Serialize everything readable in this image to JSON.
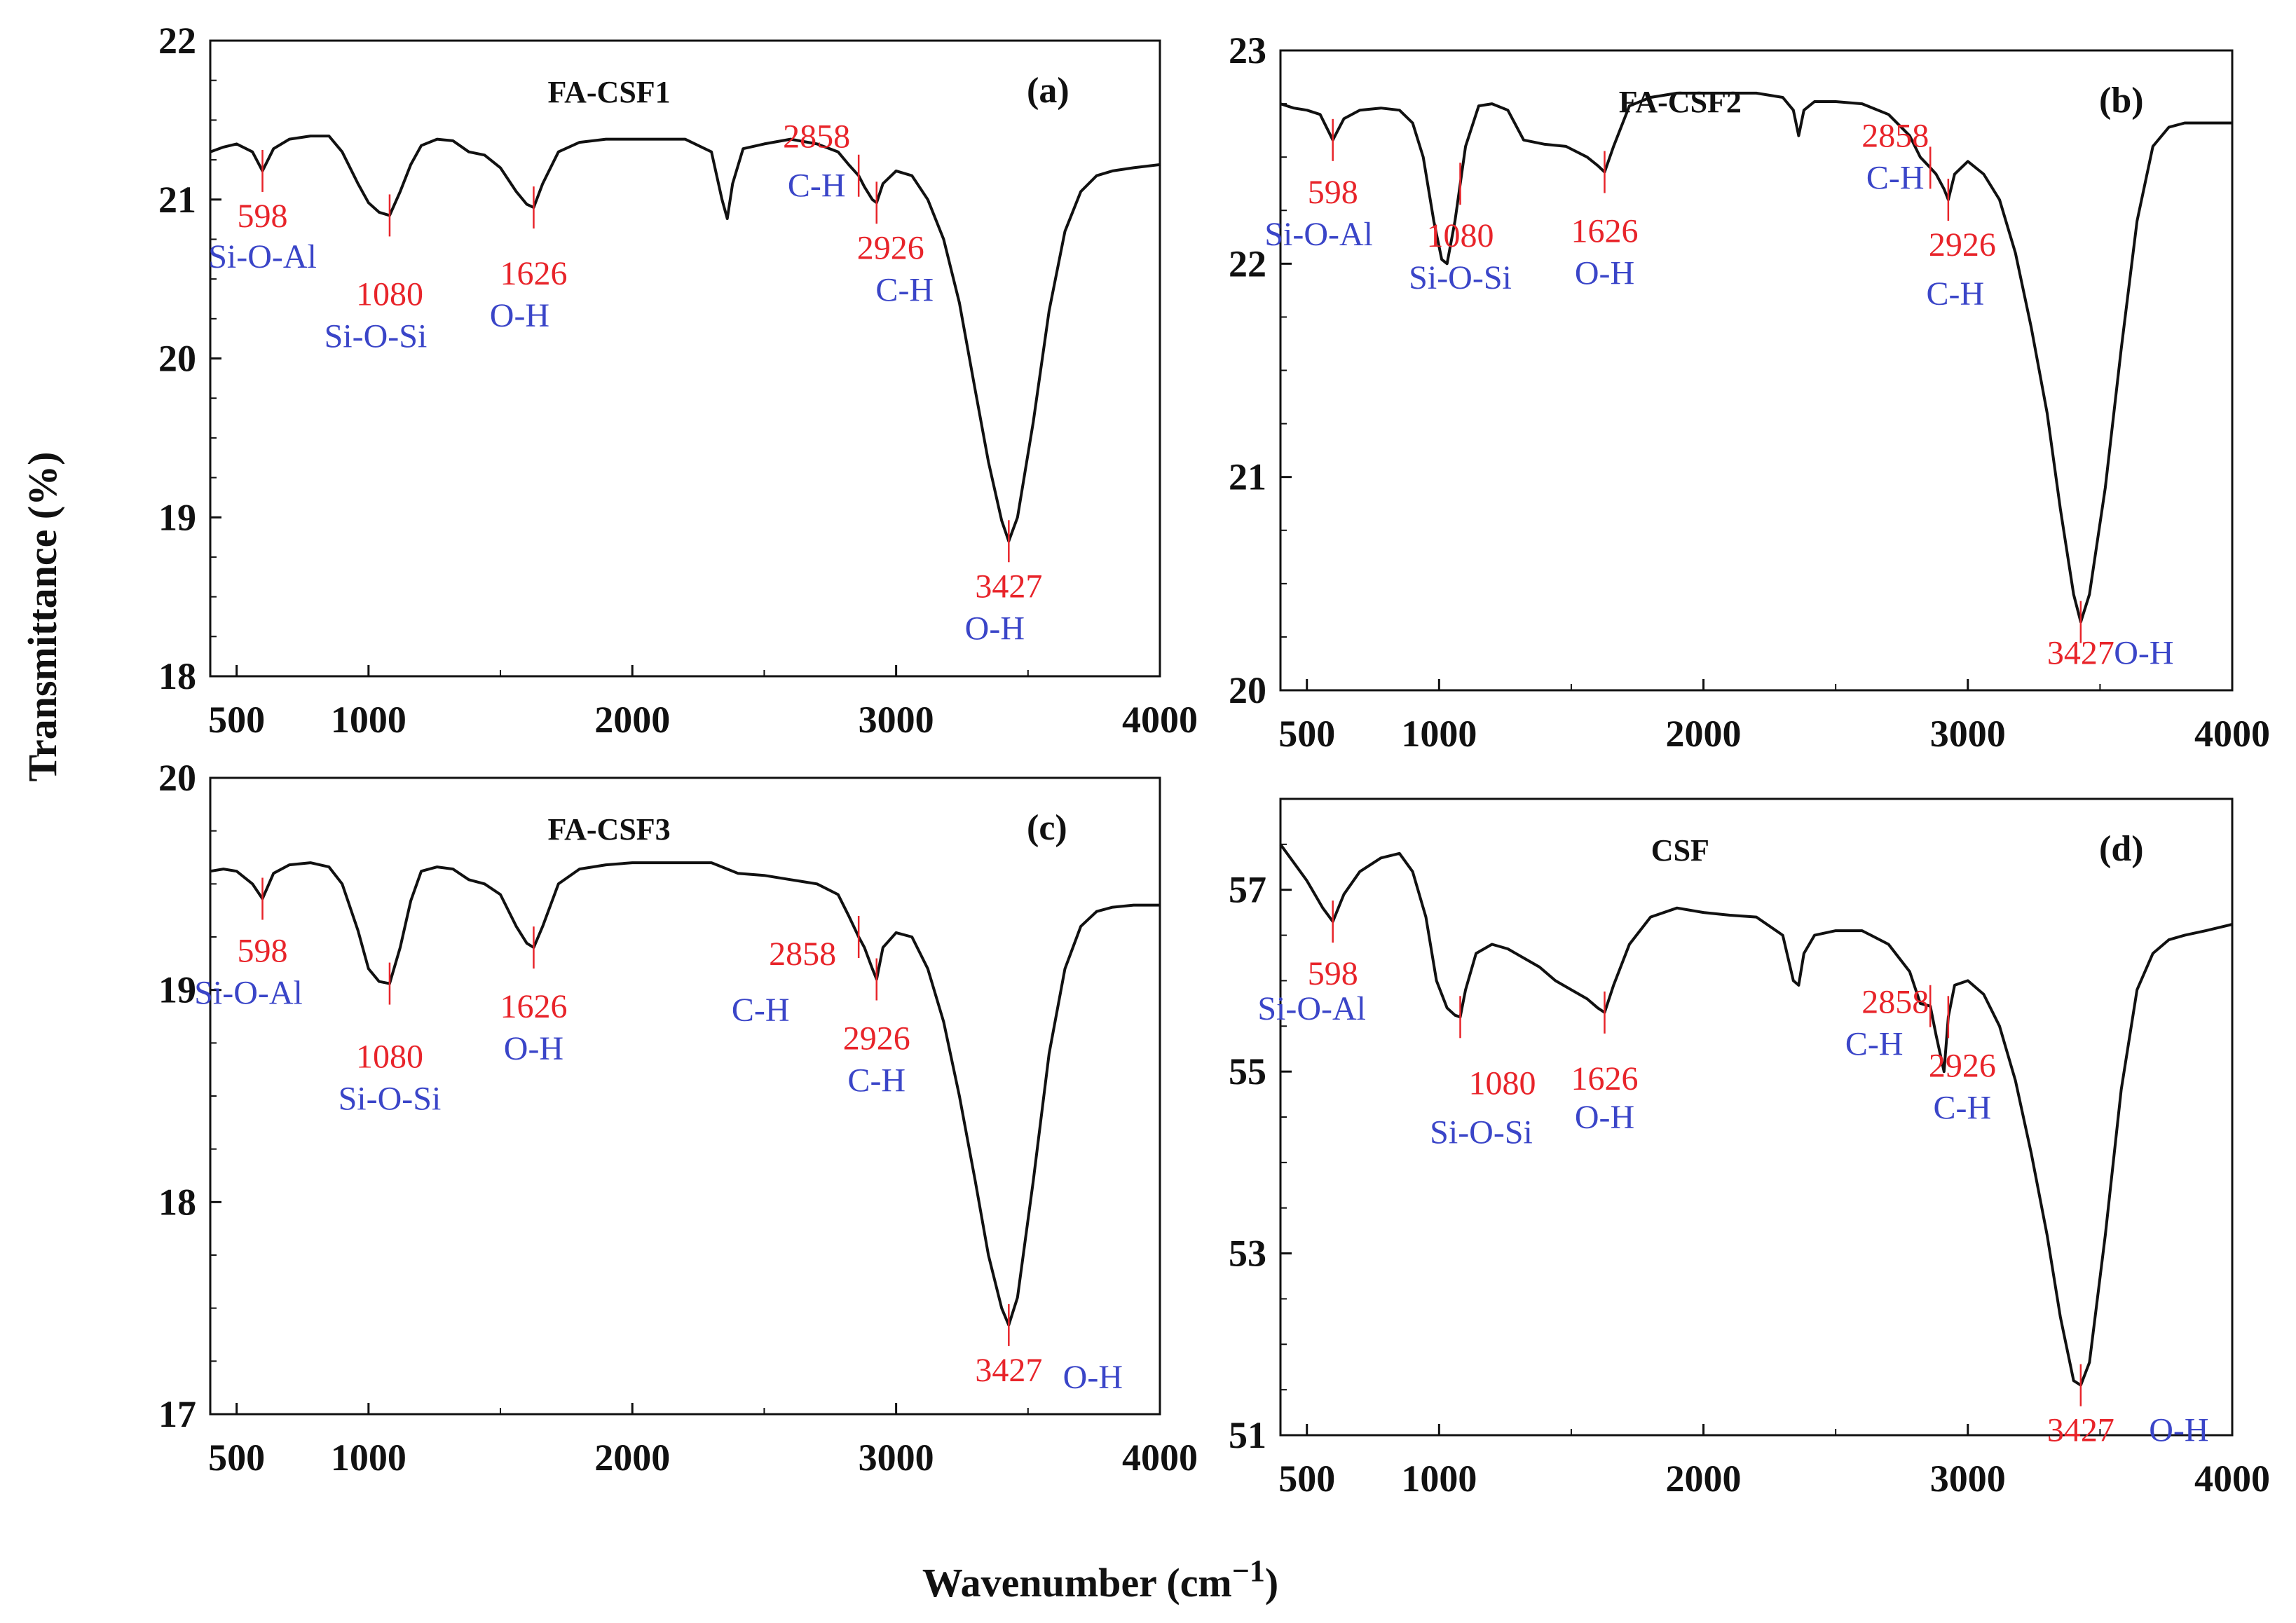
{
  "figure": {
    "ylabel": "Transmittance (%)",
    "xlabel_main": "Wavenumber (cm",
    "xlabel_sup": "−1",
    "xlabel_close": ")"
  },
  "colors": {
    "curve": "#111111",
    "peak_number": "#e8242a",
    "peak_group": "#3a45c8",
    "axis": "#111111"
  },
  "chart_data": [
    {
      "type": "line",
      "letter": "(a)",
      "title": "FA-CSF1",
      "xlim": [
        400,
        4000
      ],
      "ylim": [
        18,
        22
      ],
      "xticks": [
        500,
        1000,
        2000,
        3000,
        4000
      ],
      "yticks": [
        18,
        19,
        20,
        21,
        22
      ],
      "series": [
        {
          "name": "FA-CSF1",
          "x": [
            400,
            450,
            500,
            560,
            598,
            640,
            700,
            780,
            850,
            900,
            960,
            1000,
            1040,
            1080,
            1120,
            1160,
            1200,
            1260,
            1320,
            1380,
            1440,
            1500,
            1560,
            1600,
            1626,
            1660,
            1720,
            1800,
            1900,
            2000,
            2100,
            2200,
            2300,
            2340,
            2360,
            2380,
            2420,
            2500,
            2600,
            2700,
            2780,
            2820,
            2858,
            2880,
            2910,
            2926,
            2950,
            3000,
            3060,
            3120,
            3180,
            3240,
            3300,
            3350,
            3400,
            3427,
            3460,
            3520,
            3580,
            3640,
            3700,
            3760,
            3820,
            3900,
            4000
          ],
          "y": [
            21.3,
            21.33,
            21.35,
            21.3,
            21.18,
            21.32,
            21.38,
            21.4,
            21.4,
            21.3,
            21.1,
            20.98,
            20.92,
            20.9,
            21.05,
            21.22,
            21.34,
            21.38,
            21.37,
            21.3,
            21.28,
            21.2,
            21.05,
            20.97,
            20.95,
            21.1,
            21.3,
            21.36,
            21.38,
            21.38,
            21.38,
            21.38,
            21.3,
            21.0,
            20.88,
            21.1,
            21.32,
            21.35,
            21.38,
            21.35,
            21.3,
            21.22,
            21.15,
            21.08,
            21.0,
            20.98,
            21.1,
            21.18,
            21.15,
            21.0,
            20.75,
            20.35,
            19.8,
            19.35,
            18.98,
            18.85,
            19.0,
            19.6,
            20.3,
            20.8,
            21.05,
            21.15,
            21.18,
            21.2,
            21.22
          ]
        }
      ],
      "annotations": [
        {
          "wavenumber": 598,
          "number": "598",
          "group": "Si-O-Al"
        },
        {
          "wavenumber": 1080,
          "number": "1080",
          "group": "Si-O-Si"
        },
        {
          "wavenumber": 1626,
          "number": "1626",
          "group": "O-H"
        },
        {
          "wavenumber": 2858,
          "number": "2858",
          "group": "C-H"
        },
        {
          "wavenumber": 2926,
          "number": "2926",
          "group": "C-H"
        },
        {
          "wavenumber": 3427,
          "number": "3427",
          "group": "O-H"
        }
      ]
    },
    {
      "type": "line",
      "letter": "(b)",
      "title": "FA-CSF2",
      "xlim": [
        400,
        4000
      ],
      "ylim": [
        20,
        23
      ],
      "xticks": [
        500,
        1000,
        2000,
        3000,
        4000
      ],
      "yticks": [
        20,
        21,
        22,
        23
      ],
      "series": [
        {
          "name": "FA-CSF2",
          "x": [
            400,
            450,
            500,
            550,
            598,
            640,
            700,
            780,
            850,
            900,
            940,
            980,
            1010,
            1030,
            1060,
            1100,
            1150,
            1200,
            1260,
            1320,
            1400,
            1480,
            1560,
            1600,
            1626,
            1660,
            1720,
            1800,
            1900,
            2000,
            2100,
            2200,
            2300,
            2340,
            2360,
            2380,
            2420,
            2500,
            2600,
            2700,
            2780,
            2820,
            2858,
            2880,
            2910,
            2926,
            2950,
            3000,
            3060,
            3120,
            3180,
            3240,
            3300,
            3350,
            3400,
            3427,
            3460,
            3520,
            3580,
            3640,
            3700,
            3760,
            3820,
            3900,
            4000
          ],
          "y": [
            22.75,
            22.73,
            22.72,
            22.7,
            22.58,
            22.68,
            22.72,
            22.73,
            22.72,
            22.66,
            22.5,
            22.2,
            22.02,
            22.0,
            22.2,
            22.55,
            22.74,
            22.75,
            22.72,
            22.58,
            22.56,
            22.55,
            22.5,
            22.46,
            22.43,
            22.55,
            22.74,
            22.78,
            22.8,
            22.8,
            22.8,
            22.8,
            22.78,
            22.72,
            22.6,
            22.72,
            22.76,
            22.76,
            22.75,
            22.7,
            22.6,
            22.5,
            22.45,
            22.42,
            22.35,
            22.3,
            22.42,
            22.48,
            22.42,
            22.3,
            22.05,
            21.7,
            21.3,
            20.85,
            20.45,
            20.32,
            20.45,
            20.95,
            21.6,
            22.2,
            22.55,
            22.64,
            22.66,
            22.66,
            22.66
          ]
        }
      ],
      "annotations": [
        {
          "wavenumber": 598,
          "number": "598",
          "group": "Si-O-Al"
        },
        {
          "wavenumber": 1080,
          "number": "1080",
          "group": "Si-O-Si"
        },
        {
          "wavenumber": 1626,
          "number": "1626",
          "group": "O-H"
        },
        {
          "wavenumber": 2858,
          "number": "2858",
          "group": "C-H"
        },
        {
          "wavenumber": 2926,
          "number": "2926",
          "group": "C-H"
        },
        {
          "wavenumber": 3427,
          "number": "3427",
          "group": "O-H"
        }
      ]
    },
    {
      "type": "line",
      "letter": "(c)",
      "title": "FA-CSF3",
      "xlim": [
        400,
        4000
      ],
      "ylim": [
        17,
        20
      ],
      "xticks": [
        500,
        1000,
        2000,
        3000,
        4000
      ],
      "yticks": [
        17,
        18,
        19,
        20
      ],
      "series": [
        {
          "name": "FA-CSF3",
          "x": [
            400,
            450,
            500,
            560,
            598,
            640,
            700,
            780,
            850,
            900,
            960,
            1000,
            1040,
            1080,
            1120,
            1160,
            1200,
            1260,
            1320,
            1380,
            1440,
            1500,
            1560,
            1600,
            1626,
            1660,
            1720,
            1800,
            1900,
            2000,
            2100,
            2200,
            2300,
            2400,
            2500,
            2600,
            2700,
            2780,
            2820,
            2858,
            2880,
            2910,
            2926,
            2950,
            3000,
            3060,
            3120,
            3180,
            3240,
            3300,
            3350,
            3400,
            3427,
            3460,
            3520,
            3580,
            3640,
            3700,
            3760,
            3820,
            3900,
            4000
          ],
          "y": [
            19.56,
            19.57,
            19.56,
            19.5,
            19.43,
            19.55,
            19.59,
            19.6,
            19.58,
            19.5,
            19.28,
            19.1,
            19.04,
            19.03,
            19.2,
            19.42,
            19.56,
            19.58,
            19.57,
            19.52,
            19.5,
            19.45,
            19.3,
            19.22,
            19.2,
            19.3,
            19.5,
            19.57,
            19.59,
            19.6,
            19.6,
            19.6,
            19.6,
            19.55,
            19.54,
            19.52,
            19.5,
            19.45,
            19.35,
            19.25,
            19.2,
            19.1,
            19.05,
            19.2,
            19.27,
            19.25,
            19.1,
            18.85,
            18.5,
            18.1,
            17.75,
            17.5,
            17.42,
            17.55,
            18.1,
            18.7,
            19.1,
            19.3,
            19.37,
            19.39,
            19.4,
            19.4
          ]
        }
      ],
      "annotations": [
        {
          "wavenumber": 598,
          "number": "598",
          "group": "Si-O-Al"
        },
        {
          "wavenumber": 1080,
          "number": "1080",
          "group": "Si-O-Si"
        },
        {
          "wavenumber": 1626,
          "number": "1626",
          "group": "O-H"
        },
        {
          "wavenumber": 2858,
          "number": "2858",
          "group": "C-H"
        },
        {
          "wavenumber": 2926,
          "number": "2926",
          "group": "C-H"
        },
        {
          "wavenumber": 3427,
          "number": "3427",
          "group": "O-H"
        }
      ]
    },
    {
      "type": "line",
      "letter": "(d)",
      "title": "CSF",
      "xlim": [
        400,
        4000
      ],
      "ylim": [
        51,
        58
      ],
      "xticks": [
        500,
        1000,
        2000,
        3000,
        4000
      ],
      "yticks": [
        51,
        53,
        55,
        57
      ],
      "series": [
        {
          "name": "CSF",
          "x": [
            400,
            450,
            500,
            560,
            598,
            640,
            700,
            780,
            850,
            900,
            950,
            990,
            1030,
            1060,
            1080,
            1100,
            1140,
            1200,
            1260,
            1320,
            1380,
            1440,
            1500,
            1560,
            1600,
            1626,
            1660,
            1720,
            1800,
            1900,
            2000,
            2100,
            2200,
            2300,
            2340,
            2360,
            2380,
            2420,
            2500,
            2600,
            2700,
            2780,
            2820,
            2858,
            2880,
            2910,
            2926,
            2950,
            3000,
            3060,
            3120,
            3180,
            3240,
            3300,
            3350,
            3400,
            3427,
            3460,
            3520,
            3580,
            3640,
            3700,
            3760,
            3820,
            3900,
            4000
          ],
          "y": [
            57.5,
            57.3,
            57.1,
            56.8,
            56.65,
            56.95,
            57.2,
            57.35,
            57.4,
            57.2,
            56.7,
            56.0,
            55.7,
            55.62,
            55.6,
            55.9,
            56.3,
            56.4,
            56.35,
            56.25,
            56.15,
            56.0,
            55.9,
            55.8,
            55.7,
            55.65,
            55.95,
            56.4,
            56.7,
            56.8,
            56.75,
            56.72,
            56.7,
            56.5,
            56.0,
            55.95,
            56.3,
            56.5,
            56.55,
            56.55,
            56.4,
            56.1,
            55.75,
            55.72,
            55.4,
            55.0,
            55.6,
            55.95,
            56.0,
            55.85,
            55.5,
            54.9,
            54.1,
            53.2,
            52.3,
            51.6,
            51.55,
            51.8,
            53.2,
            54.8,
            55.9,
            56.3,
            56.45,
            56.5,
            56.55,
            56.62
          ]
        }
      ],
      "annotations": [
        {
          "wavenumber": 598,
          "number": "598",
          "group": "Si-O-Al"
        },
        {
          "wavenumber": 1080,
          "number": "1080",
          "group": "Si-O-Si"
        },
        {
          "wavenumber": 1626,
          "number": "1626",
          "group": "O-H"
        },
        {
          "wavenumber": 2858,
          "number": "2858",
          "group": "C-H"
        },
        {
          "wavenumber": 2926,
          "number": "2926",
          "group": "C-H"
        },
        {
          "wavenumber": 3427,
          "number": "3427",
          "group": "O-H"
        }
      ]
    }
  ]
}
